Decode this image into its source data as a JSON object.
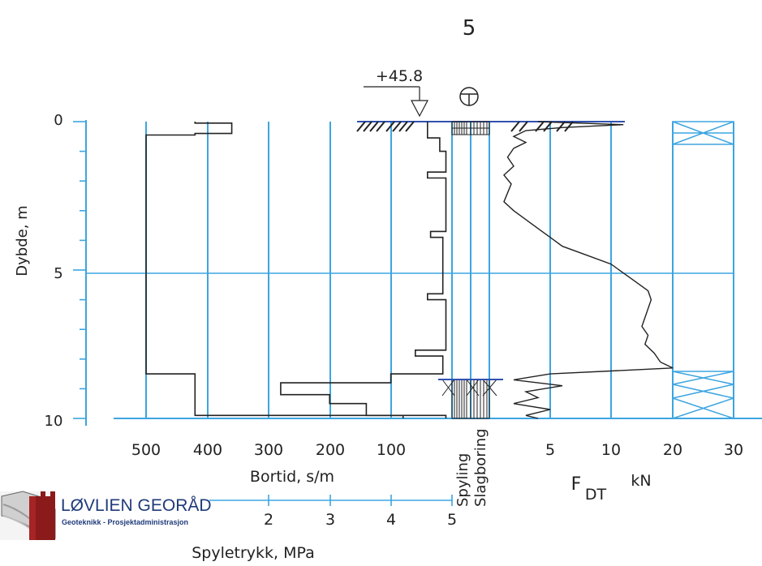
{
  "borehole_number": "5",
  "elevation_label": "+45.8",
  "colors": {
    "grid": "#3da5e0",
    "line": "#2a2a2a",
    "hatch_blue": "#3da5e0"
  },
  "icons": [
    "ground-water-symbol",
    "ground-level-hatch",
    "logo-icon"
  ],
  "company": {
    "name": "LØVLIEN GEORÅD",
    "tagline": "Geoteknikk - Prosjektadministrasjon"
  },
  "chart_data": [
    {
      "type": "line",
      "series": [
        {
          "name": "Bortid",
          "depth_m": [
            0,
            0.05,
            0.05,
            0.4,
            0.4,
            0.45,
            0.45,
            8.5,
            8.5,
            9.9,
            9.9,
            10.0
          ],
          "value_s_per_m": [
            420,
            420,
            360,
            360,
            420,
            420,
            500,
            500,
            420,
            420,
            80,
            80
          ]
        }
      ],
      "series_right": [
        {
          "name": "Bortid (right profile)",
          "depth_m": [
            0,
            0.55,
            0.55,
            1.0,
            1.0,
            1.7,
            1.7,
            1.9,
            1.9,
            3.7,
            3.7,
            3.9,
            3.9,
            5.8,
            5.8,
            6.0,
            6.0,
            7.7,
            7.7,
            7.9,
            7.9,
            8.5,
            8.5,
            8.8,
            8.8,
            9.2,
            9.2,
            9.3,
            9.3,
            9.5,
            9.5,
            9.9,
            9.9,
            10.0
          ],
          "value_s_per_m": [
            40,
            40,
            20,
            20,
            10,
            10,
            40,
            40,
            10,
            10,
            35,
            35,
            15,
            15,
            40,
            40,
            10,
            10,
            60,
            60,
            15,
            15,
            100,
            100,
            280,
            280,
            200,
            200,
            200,
            200,
            140,
            140,
            10,
            10
          ]
        }
      ],
      "xlabel": "Bortid, s/m",
      "x_ticks": [
        "500",
        "400",
        "300",
        "200",
        "100"
      ],
      "xlim": [
        500,
        0
      ],
      "ylabel": "Dybde, m",
      "y_ticks": [
        "0",
        "5",
        "10"
      ],
      "ylim": [
        10,
        0
      ],
      "grid": true
    },
    {
      "type": "area",
      "xlabel_1": "Spyling",
      "xlabel_2": "Slagboring",
      "segments_depth_m": [
        [
          0,
          0.4
        ],
        [
          8.5,
          10.0
        ]
      ]
    },
    {
      "type": "line",
      "series": [
        {
          "name": "F_DT",
          "depth_m": [
            0,
            0.1,
            0.2,
            0.3,
            0.5,
            0.7,
            0.9,
            1.2,
            1.5,
            1.8,
            2.1,
            2.4,
            2.7,
            3.0,
            3.3,
            3.6,
            3.9,
            4.2,
            4.5,
            4.8,
            5.1,
            5.4,
            5.7,
            6.0,
            6.3,
            6.6,
            6.9,
            7.2,
            7.5,
            7.8,
            8.1,
            8.3,
            8.5,
            8.7,
            8.9,
            9.1,
            9.3,
            9.5,
            9.7,
            9.9,
            10.0
          ],
          "value_kN": [
            4,
            12,
            6,
            3,
            2,
            3,
            2,
            1.5,
            2,
            1.2,
            1.8,
            1.5,
            1.2,
            2,
            3,
            4,
            5,
            6,
            8,
            10,
            12,
            14,
            16,
            16.5,
            16,
            15.5,
            15,
            16,
            15.5,
            17,
            18,
            20,
            5,
            2,
            6,
            3,
            4,
            2,
            5,
            3,
            4
          ]
        }
      ],
      "xlabel": "F",
      "xlabel_subscript": "DT",
      "xunit": "kN",
      "x_ticks": [
        "5",
        "10",
        "20",
        "30"
      ],
      "xlim": [
        0,
        30
      ],
      "grid": true
    },
    {
      "type": "line",
      "title": "",
      "xlabel": "Spyletrykk, MPa",
      "x_ticks": [
        "2",
        "3",
        "4",
        "5"
      ]
    }
  ]
}
